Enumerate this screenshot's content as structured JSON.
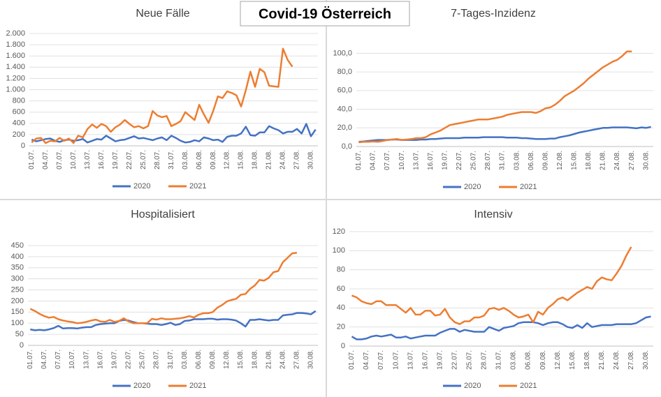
{
  "title": "Covid-19 Österreich",
  "chart_data": [
    {
      "type": "line",
      "title": "Neue Fälle",
      "categories": [
        "01.07.",
        null,
        null,
        "04.07.",
        null,
        null,
        "07.07.",
        null,
        null,
        "10.07.",
        null,
        null,
        "13.07.",
        null,
        null,
        "16.07.",
        null,
        null,
        "19.07.",
        null,
        null,
        "22.07.",
        null,
        null,
        "25.07.",
        null,
        null,
        "28.07.",
        null,
        null,
        "31.07.",
        null,
        null,
        "03.08.",
        null,
        null,
        "06.08.",
        null,
        null,
        "09.08.",
        null,
        null,
        "12.08.",
        null,
        null,
        "15.08.",
        null,
        null,
        "18.08.",
        null,
        null,
        "21.08.",
        null,
        null,
        "24.08.",
        null,
        null,
        "27.08.",
        null,
        null,
        "30.08.",
        null
      ],
      "series": [
        {
          "name": "2020",
          "color": "#4472c4",
          "values": [
            110,
            80,
            100,
            120,
            130,
            90,
            70,
            100,
            110,
            90,
            100,
            120,
            60,
            90,
            120,
            110,
            180,
            130,
            80,
            100,
            110,
            140,
            170,
            130,
            140,
            120,
            100,
            130,
            150,
            100,
            180,
            140,
            90,
            60,
            70,
            100,
            80,
            150,
            130,
            100,
            110,
            70,
            160,
            180,
            180,
            220,
            340,
            190,
            180,
            240,
            240,
            350,
            310,
            280,
            220,
            250,
            250,
            300,
            220,
            390,
            170,
            290
          ]
        },
        {
          "name": "2021",
          "color": "#ed7d31",
          "values": [
            60,
            130,
            140,
            50,
            90,
            80,
            140,
            90,
            130,
            50,
            180,
            150,
            300,
            380,
            320,
            390,
            350,
            250,
            330,
            380,
            460,
            390,
            330,
            350,
            310,
            350,
            620,
            540,
            510,
            530,
            350,
            390,
            440,
            600,
            530,
            460,
            730,
            560,
            410,
            620,
            880,
            850,
            970,
            940,
            900,
            700,
            990,
            1320,
            1050,
            1370,
            1310,
            1070,
            1060,
            1050,
            1730,
            1530,
            1410,
            null,
            null,
            null,
            null,
            null
          ]
        }
      ],
      "ylim": [
        0,
        2000
      ],
      "yticks": [
        0,
        200,
        400,
        600,
        800,
        {
          "value": 1000,
          "label": "1.000"
        },
        {
          "value": 1200,
          "label": "1.200"
        },
        {
          "value": 1400,
          "label": "1.400"
        },
        {
          "value": 1600,
          "label": "1.600"
        },
        {
          "value": 1800,
          "label": "1.800"
        },
        {
          "value": 2000,
          "label": "2.000"
        }
      ],
      "grid": true,
      "legend": "bottom"
    },
    {
      "type": "line",
      "title": "7-Tages-Inzidenz",
      "categories": [
        "01.07.",
        null,
        null,
        "04.07.",
        null,
        null,
        "07.07.",
        null,
        null,
        "10.07.",
        null,
        null,
        "13.07.",
        null,
        null,
        "16.07.",
        null,
        null,
        "19.07.",
        null,
        null,
        "22.07.",
        null,
        null,
        "25.07.",
        null,
        null,
        "28.07.",
        null,
        null,
        "31.07.",
        null,
        null,
        "03.08.",
        null,
        null,
        "06.08.",
        null,
        null,
        "09.08.",
        null,
        null,
        "12.08.",
        null,
        null,
        "15.08.",
        null,
        null,
        "18.08.",
        null,
        null,
        "21.08.",
        null,
        null,
        "24.08.",
        null,
        null,
        "27.08.",
        null,
        null,
        "30.08.",
        null
      ],
      "series": [
        {
          "name": "2020",
          "color": "#4472c4",
          "values": [
            5,
            5.5,
            6,
            6.5,
            7,
            7,
            7,
            7.5,
            7.5,
            7,
            7,
            7,
            7,
            7.5,
            7.5,
            8,
            8,
            8.5,
            9,
            9,
            9,
            9,
            9.5,
            9.5,
            9.5,
            9.5,
            10,
            10,
            10,
            10,
            10,
            9.5,
            9.5,
            9.5,
            9,
            9,
            8.5,
            8,
            8,
            8,
            8.5,
            8.5,
            10,
            11,
            12,
            13.5,
            15,
            16,
            17,
            18,
            19,
            20,
            20,
            20.5,
            20.5,
            20.5,
            20.5,
            20,
            19.5,
            20.5,
            20,
            21
          ]
        },
        {
          "name": "2021",
          "color": "#ed7d31",
          "values": [
            4.5,
            5,
            5,
            5.5,
            5,
            6,
            7,
            7.5,
            8,
            7,
            7.5,
            8,
            9,
            9,
            10,
            13,
            15,
            17,
            20,
            23,
            24,
            25,
            26,
            27,
            28,
            29,
            29,
            29,
            30,
            31,
            32,
            34,
            35,
            36,
            37,
            37,
            37,
            36,
            38,
            41,
            42,
            45,
            49,
            54,
            57,
            60,
            64,
            68,
            73,
            77,
            81,
            85,
            88,
            91,
            93,
            97,
            102,
            102,
            null,
            null,
            null,
            null
          ]
        }
      ],
      "ylim": [
        0,
        110
      ],
      "yticks": [
        {
          "value": 0,
          "label": "0,0"
        },
        {
          "value": 20,
          "label": "20,0"
        },
        {
          "value": 40,
          "label": "40,0"
        },
        {
          "value": 60,
          "label": "60,0"
        },
        {
          "value": 80,
          "label": "80,0"
        },
        {
          "value": 100,
          "label": "100,0"
        }
      ],
      "grid": true,
      "legend": "bottom"
    },
    {
      "type": "line",
      "title": "Hospitalisiert",
      "categories": [
        "01.07.",
        null,
        null,
        "04.07.",
        null,
        null,
        "07.07.",
        null,
        null,
        "10.07.",
        null,
        null,
        "13.07.",
        null,
        null,
        "16.07.",
        null,
        null,
        "19.07.",
        null,
        null,
        "22.07.",
        null,
        null,
        "25.07.",
        null,
        null,
        "28.07.",
        null,
        null,
        "31.07.",
        null,
        null,
        "03.08.",
        null,
        null,
        "06.08.",
        null,
        null,
        "09.08.",
        null,
        null,
        "12.08.",
        null,
        null,
        "15.08.",
        null,
        null,
        "18.08.",
        null,
        null,
        "21.08.",
        null,
        null,
        "24.08.",
        null,
        null,
        "27.08.",
        null,
        null,
        "30.08.",
        null
      ],
      "series": [
        {
          "name": "2020",
          "color": "#4472c4",
          "values": [
            72,
            68,
            70,
            68,
            72,
            78,
            88,
            76,
            78,
            78,
            76,
            80,
            82,
            82,
            92,
            96,
            98,
            100,
            100,
            110,
            115,
            112,
            105,
            100,
            100,
            98,
            96,
            96,
            92,
            96,
            102,
            92,
            96,
            110,
            112,
            118,
            118,
            118,
            120,
            120,
            116,
            118,
            118,
            116,
            112,
            100,
            85,
            115,
            115,
            118,
            115,
            112,
            115,
            115,
            135,
            138,
            140,
            146,
            146,
            144,
            140,
            155
          ]
        },
        {
          "name": "2021",
          "color": "#ed7d31",
          "values": [
            165,
            155,
            142,
            132,
            125,
            128,
            118,
            112,
            108,
            105,
            100,
            102,
            106,
            112,
            116,
            108,
            106,
            115,
            106,
            110,
            122,
            108,
            100,
            100,
            100,
            100,
            120,
            116,
            122,
            118,
            118,
            120,
            122,
            126,
            132,
            126,
            138,
            145,
            145,
            150,
            170,
            182,
            198,
            205,
            210,
            228,
            232,
            255,
            270,
            295,
            292,
            305,
            330,
            335,
            375,
            395,
            415,
            418,
            null,
            null,
            null,
            null
          ]
        }
      ],
      "ylim": [
        0,
        450
      ],
      "yticks": [
        0,
        50,
        100,
        150,
        200,
        250,
        300,
        350,
        400,
        450
      ],
      "grid": true,
      "legend": "bottom"
    },
    {
      "type": "line",
      "title": "Intensiv",
      "categories": [
        "01.07.",
        null,
        null,
        "04.07.",
        null,
        null,
        "07.07.",
        null,
        null,
        "10.07.",
        null,
        null,
        "13.07.",
        null,
        null,
        "16.07.",
        null,
        null,
        "19.07.",
        null,
        null,
        "22.07.",
        null,
        null,
        "25.07.",
        null,
        null,
        "28.07.",
        null,
        null,
        "31.07.",
        null,
        null,
        "03.08.",
        null,
        null,
        "06.08.",
        null,
        null,
        "09.08.",
        null,
        null,
        "12.08.",
        null,
        null,
        "15.08.",
        null,
        null,
        "18.08.",
        null,
        null,
        "21.08.",
        null,
        null,
        "24.08.",
        null,
        null,
        "27.08.",
        null,
        null,
        "30.08.",
        null
      ],
      "series": [
        {
          "name": "2020",
          "color": "#4472c4",
          "values": [
            10,
            7,
            7,
            8,
            10,
            11,
            10,
            11,
            12,
            9,
            9,
            10,
            8,
            9,
            10,
            11,
            11,
            11,
            14,
            16,
            18,
            18,
            15,
            17,
            16,
            15,
            15,
            15,
            20,
            18,
            16,
            19,
            20,
            21,
            24,
            25,
            25,
            25,
            24,
            22,
            24,
            25,
            25,
            23,
            20,
            19,
            22,
            19,
            24,
            20,
            21,
            22,
            22,
            22,
            23,
            23,
            23,
            23,
            24,
            27,
            30,
            31
          ]
        },
        {
          "name": "2021",
          "color": "#ed7d31",
          "values": [
            53,
            51,
            47,
            45,
            44,
            47,
            47,
            43,
            43,
            43,
            39,
            35,
            40,
            33,
            33,
            37,
            37,
            32,
            33,
            39,
            30,
            25,
            23,
            26,
            26,
            30,
            30,
            32,
            39,
            40,
            38,
            40,
            37,
            33,
            30,
            31,
            33,
            25,
            36,
            33,
            40,
            44,
            49,
            51,
            48,
            52,
            56,
            59,
            62,
            60,
            68,
            72,
            70,
            69,
            76,
            84,
            95,
            104,
            null,
            null,
            null,
            null
          ]
        }
      ],
      "ylim": [
        0,
        120
      ],
      "yticks": [
        0,
        20,
        40,
        60,
        80,
        100,
        120
      ],
      "grid": true,
      "legend": "bottom"
    }
  ]
}
